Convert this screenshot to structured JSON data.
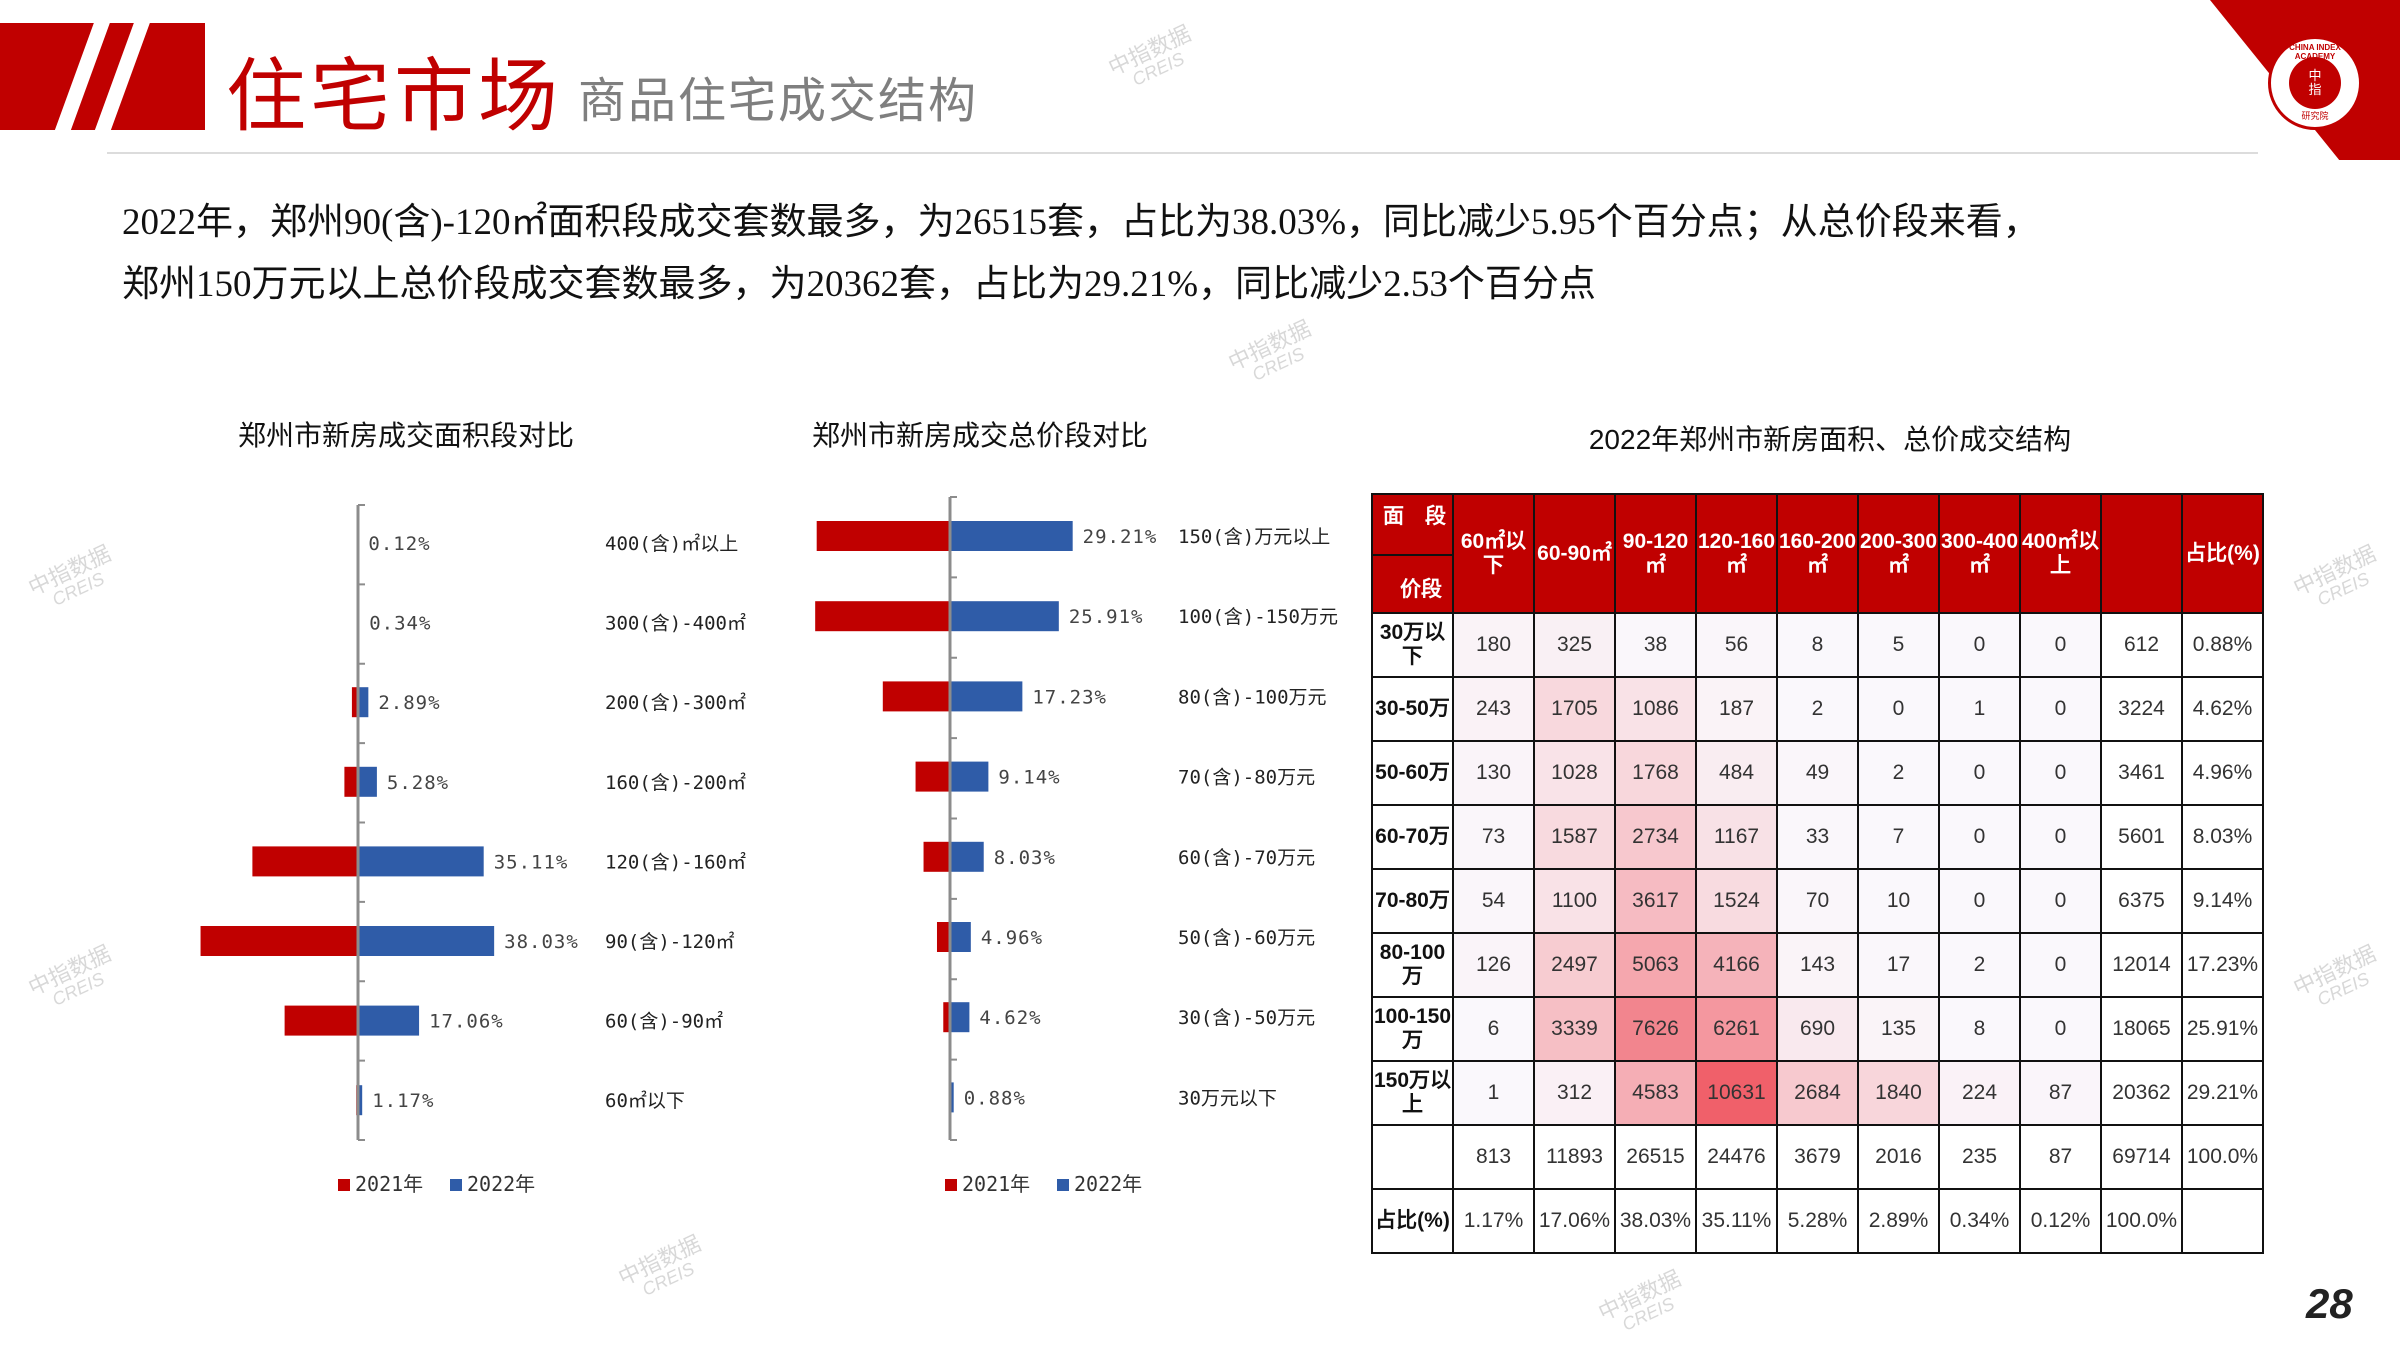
{
  "header": {
    "title": "住宅市场",
    "subtitle": "商品住宅成交结构",
    "logo_text": "CHINA INDEX ACADEMY 中指研究院"
  },
  "summary": [
    "2022年，郑州90(含)-120㎡面积段成交套数最多，为26515套，占比为38.03%，同比减少5.95个百分点；从总价段来看，",
    "郑州150万元以上总价段成交套数最多，为20362套，占比为29.21%，同比减少2.53个百分点"
  ],
  "watermark": {
    "cn": "中指数据",
    "en": "CREIS"
  },
  "colors": {
    "y2021": "#c00000",
    "y2022": "#2f5ca8",
    "accent": "#c00000",
    "heat": "#f0606a"
  },
  "chart_data": [
    {
      "type": "bar",
      "orientation": "horizontal-diverging",
      "title": "郑州市新房成交面积段对比",
      "categories": [
        "400(含)㎡以上",
        "300(含)-400㎡",
        "200(含)-300㎡",
        "160(含)-200㎡",
        "120(含)-160㎡",
        "90(含)-120㎡",
        "60(含)-90㎡",
        "60㎡以下"
      ],
      "series": [
        {
          "name": "2021年",
          "values": [
            0.1,
            0.3,
            1.7,
            3.8,
            29.5,
            43.98,
            20.5,
            0.5
          ]
        },
        {
          "name": "2022年",
          "values": [
            0.12,
            0.34,
            2.89,
            5.28,
            35.11,
            38.03,
            17.06,
            1.17
          ],
          "labels": [
            "0.12%",
            "0.34%",
            "2.89%",
            "5.28%",
            "35.11%",
            "38.03%",
            "17.06%",
            "1.17%"
          ]
        }
      ],
      "legend": "bottom",
      "unit": "%"
    },
    {
      "type": "bar",
      "orientation": "horizontal-diverging",
      "title": "郑州市新房成交总价段对比",
      "categories": [
        "150(含)万元以上",
        "100(含)-150万元",
        "80(含)-100万元",
        "70(含)-80万元",
        "60(含)-70万元",
        "50(含)-60万元",
        "30(含)-50万元",
        "30万元以下"
      ],
      "series": [
        {
          "name": "2021年",
          "values": [
            31.74,
            32.1,
            16.0,
            8.2,
            6.3,
            3.1,
            1.6,
            0.3
          ]
        },
        {
          "name": "2022年",
          "values": [
            29.21,
            25.91,
            17.23,
            9.14,
            8.03,
            4.96,
            4.62,
            0.88
          ],
          "labels": [
            "29.21%",
            "25.91%",
            "17.23%",
            "9.14%",
            "8.03%",
            "4.96%",
            "4.62%",
            "0.88%"
          ]
        }
      ],
      "legend": "bottom",
      "unit": "%"
    }
  ],
  "table": {
    "title": "2022年郑州市新房面积、总价成交结构",
    "corner_top": "面　段",
    "corner_bottom": "价段",
    "columns": [
      "60㎡以下",
      "60-90㎡",
      "90-120㎡",
      "120-160㎡",
      "160-200㎡",
      "200-300㎡",
      "300-400㎡",
      "400㎡以上",
      "",
      "占比(%)"
    ],
    "rows": [
      {
        "label": "30万以下",
        "values": [
          "180",
          "325",
          "38",
          "56",
          "8",
          "5",
          "0",
          "0",
          "612",
          "0.88%"
        ]
      },
      {
        "label": "30-50万",
        "values": [
          "243",
          "1705",
          "1086",
          "187",
          "2",
          "0",
          "1",
          "0",
          "3224",
          "4.62%"
        ]
      },
      {
        "label": "50-60万",
        "values": [
          "130",
          "1028",
          "1768",
          "484",
          "49",
          "2",
          "0",
          "0",
          "3461",
          "4.96%"
        ]
      },
      {
        "label": "60-70万",
        "values": [
          "73",
          "1587",
          "2734",
          "1167",
          "33",
          "7",
          "0",
          "0",
          "5601",
          "8.03%"
        ]
      },
      {
        "label": "70-80万",
        "values": [
          "54",
          "1100",
          "3617",
          "1524",
          "70",
          "10",
          "0",
          "0",
          "6375",
          "9.14%"
        ]
      },
      {
        "label": "80-100万",
        "values": [
          "126",
          "2497",
          "5063",
          "4166",
          "143",
          "17",
          "2",
          "0",
          "12014",
          "17.23%"
        ]
      },
      {
        "label": "100-150万",
        "values": [
          "6",
          "3339",
          "7626",
          "6261",
          "690",
          "135",
          "8",
          "0",
          "18065",
          "25.91%"
        ]
      },
      {
        "label": "150万以上",
        "values": [
          "1",
          "312",
          "4583",
          "10631",
          "2684",
          "1840",
          "224",
          "87",
          "20362",
          "29.21%"
        ]
      },
      {
        "label": "",
        "values": [
          "813",
          "11893",
          "26515",
          "24476",
          "3679",
          "2016",
          "235",
          "87",
          "69714",
          "100.0%"
        ]
      },
      {
        "label": "占比(%)",
        "values": [
          "1.17%",
          "17.06%",
          "38.03%",
          "35.11%",
          "5.28%",
          "2.89%",
          "0.34%",
          "0.12%",
          "100.0%",
          ""
        ]
      }
    ],
    "heat_max": 10631
  },
  "page_number": "28"
}
